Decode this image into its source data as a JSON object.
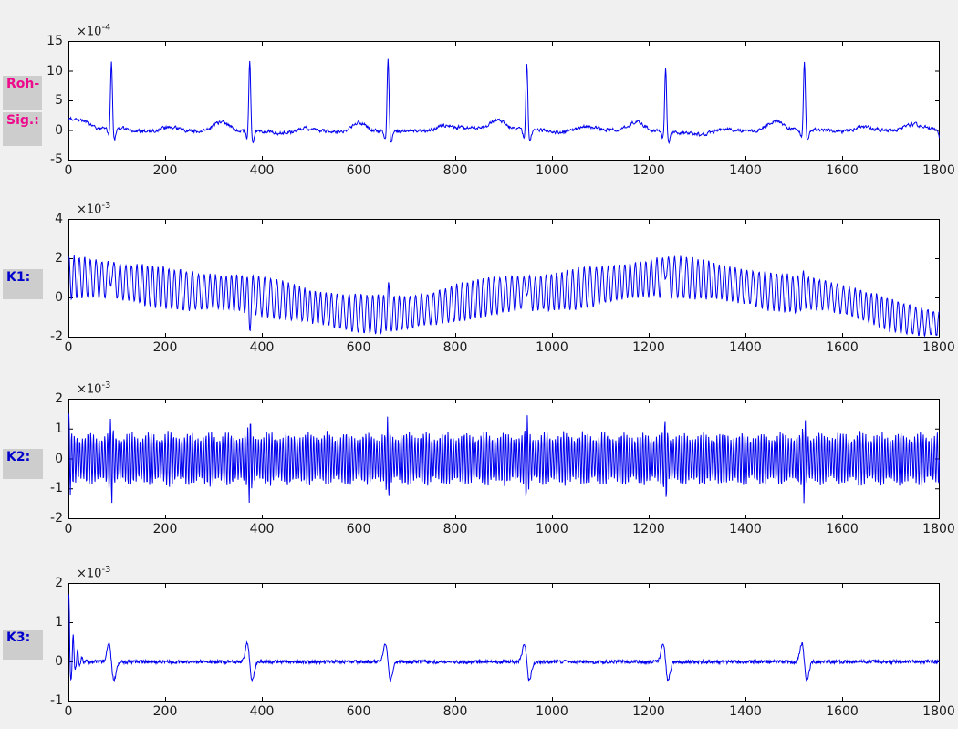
{
  "figure": {
    "background_color": "#f0f0f0",
    "plot_background_color": "#ffffff",
    "axis_color": "#000000",
    "tick_label_color": "#1a1a1a",
    "trace_color": "#0000ee",
    "label_box_color": "#cdcdcd",
    "raw_label_text_color": "#ee0a8c",
    "component_label_text_color": "#0000cc"
  },
  "row_labels": [
    {
      "text": "Roh-",
      "color": "#ee0a8c"
    },
    {
      "text": "Sig.:",
      "color": "#ee0a8c"
    },
    {
      "text": "K1:",
      "color": "#0000cc"
    },
    {
      "text": "K2:",
      "color": "#0000cc"
    },
    {
      "text": "K3:",
      "color": "#0000cc"
    }
  ],
  "chart_data": [
    {
      "id": "roh-sig",
      "type": "line",
      "title": "",
      "xlabel": "",
      "ylabel": "",
      "row_label": "Roh-Sig.:",
      "x_range": [
        0,
        1800
      ],
      "y_range": [
        -5,
        15
      ],
      "x_ticks": [
        0,
        200,
        400,
        600,
        800,
        1000,
        1200,
        1400,
        1600,
        1800
      ],
      "y_ticks": [
        -5,
        0,
        5,
        10,
        15
      ],
      "exponent": {
        "base": "×10",
        "power": "-4"
      },
      "grid": false,
      "legend": "none",
      "description": "Raw ECG signal with 6 QRS complexes",
      "signal": {
        "noise": 0.26,
        "baseline_waves": [
          {
            "amp": 0.22,
            "div": 130,
            "phase": 1.0
          },
          {
            "amp": 0.15,
            "div": 57,
            "phase": 0.4
          }
        ],
        "start_bump": {
          "amp": 1.6,
          "width": 20
        },
        "end_dip": {
          "amp": -1.7,
          "x": 1803,
          "width": 5
        },
        "beats": {
          "positions": [
            88,
            374,
            660,
            947,
            1234,
            1521
          ],
          "r_peaks": [
            11.4,
            12.3,
            12.6,
            11.6,
            11.2,
            11.9
          ],
          "p_bump": {
            "amp": 0.8,
            "offset": -58,
            "width": 13
          },
          "q_dip": {
            "amp": -1.4,
            "offset": -5,
            "width": 2.8
          },
          "r_width": 2.0,
          "s_dip": {
            "amp": -1.9,
            "offset": 6,
            "width": 2.8
          },
          "st_dip": {
            "amp": -0.35,
            "offset": 75,
            "width": 25
          },
          "t1": {
            "amp": 0.6,
            "offset": 120,
            "width": 20
          },
          "t2": {
            "amp": 0.8,
            "offset": 225,
            "width": 18
          }
        }
      }
    },
    {
      "id": "k1",
      "type": "line",
      "title": "",
      "xlabel": "",
      "ylabel": "",
      "row_label": "K1:",
      "x_range": [
        0,
        1800
      ],
      "y_range": [
        -2,
        4
      ],
      "x_ticks": [
        0,
        200,
        400,
        600,
        800,
        1000,
        1200,
        1400,
        1600,
        1800
      ],
      "y_ticks": [
        -2,
        0,
        2,
        4
      ],
      "exponent": {
        "base": "×10",
        "power": "-3"
      },
      "grid": false,
      "legend": "none",
      "description": "Component 1: mains-frequency oscillation with slow baseline wander",
      "signal": {
        "center_knots": [
          [
            0,
            1.05
          ],
          [
            300,
            0.3
          ],
          [
            640,
            -0.85
          ],
          [
            950,
            0.25
          ],
          [
            1250,
            1.05
          ],
          [
            1520,
            0.2
          ],
          [
            1800,
            -1.3
          ]
        ],
        "amp_knots": [
          [
            0,
            1.0
          ],
          [
            640,
            0.9
          ],
          [
            1250,
            0.97
          ],
          [
            1800,
            0.72
          ]
        ],
        "amp_mod": {
          "amp": 0.09,
          "div": 34,
          "phase": 2.0
        },
        "carrier_period": 11.6,
        "carrier_phase": 1.6,
        "phase_mod": {
          "amp": 1.1,
          "div": 26.6
        },
        "noise": 0.07,
        "spike_width": 2.2,
        "spikes": [
          [
            88,
            0.7
          ],
          [
            374,
            -0.95
          ],
          [
            660,
            0.8
          ],
          [
            947,
            0.7
          ],
          [
            1234,
            0.95
          ],
          [
            1521,
            0.5
          ]
        ]
      }
    },
    {
      "id": "k2",
      "type": "line",
      "title": "",
      "xlabel": "",
      "ylabel": "",
      "row_label": "K2:",
      "x_range": [
        0,
        1800
      ],
      "y_range": [
        -2,
        2
      ],
      "x_ticks": [
        0,
        200,
        400,
        600,
        800,
        1000,
        1200,
        1400,
        1600,
        1800
      ],
      "y_ticks": [
        -2,
        -1,
        0,
        1,
        2
      ],
      "exponent": {
        "base": "×10",
        "power": "-3"
      },
      "grid": false,
      "legend": "none",
      "description": "Component 2: constant-amplitude high-frequency oscillation with spikes at beats",
      "signal": {
        "amp_base": 0.78,
        "amp_mod": {
          "amp": 0.12,
          "div": 6.5,
          "phase": 1.0
        },
        "amp_noise": 0.1,
        "carrier_period": 5.68,
        "carrier_phase": 1.3,
        "phase_mod": {
          "amp": 0.7,
          "div": 20.8
        },
        "noise": 0.05,
        "beat_positions": [
          88,
          374,
          660,
          947,
          1234,
          1521
        ],
        "beat_boost": {
          "amp": 0.62,
          "width": 2.5
        },
        "start_boost": {
          "amp": 0.7,
          "width": 2.5
        }
      }
    },
    {
      "id": "k3",
      "type": "line",
      "title": "",
      "xlabel": "",
      "ylabel": "",
      "row_label": "K3:",
      "x_range": [
        0,
        1800
      ],
      "y_range": [
        -1,
        2
      ],
      "x_ticks": [
        0,
        200,
        400,
        600,
        800,
        1000,
        1200,
        1400,
        1600,
        1800
      ],
      "y_ticks": [
        -1,
        0,
        1,
        2
      ],
      "exponent": {
        "base": "×10",
        "power": "-3"
      },
      "grid": false,
      "legend": "none",
      "description": "Component 3: flat baseline with biphasic wiggles at each beat and initial transient",
      "signal": {
        "noise": 0.045,
        "beat_positions": [
          88,
          374,
          660,
          947,
          1234,
          1521
        ],
        "wiggle": {
          "amp": 0.47,
          "width": 5.2
        },
        "start_transient": {
          "amp": 1.75,
          "decay": 10,
          "period": 9,
          "neg_scale": 0.4,
          "span": 70
        }
      }
    }
  ]
}
